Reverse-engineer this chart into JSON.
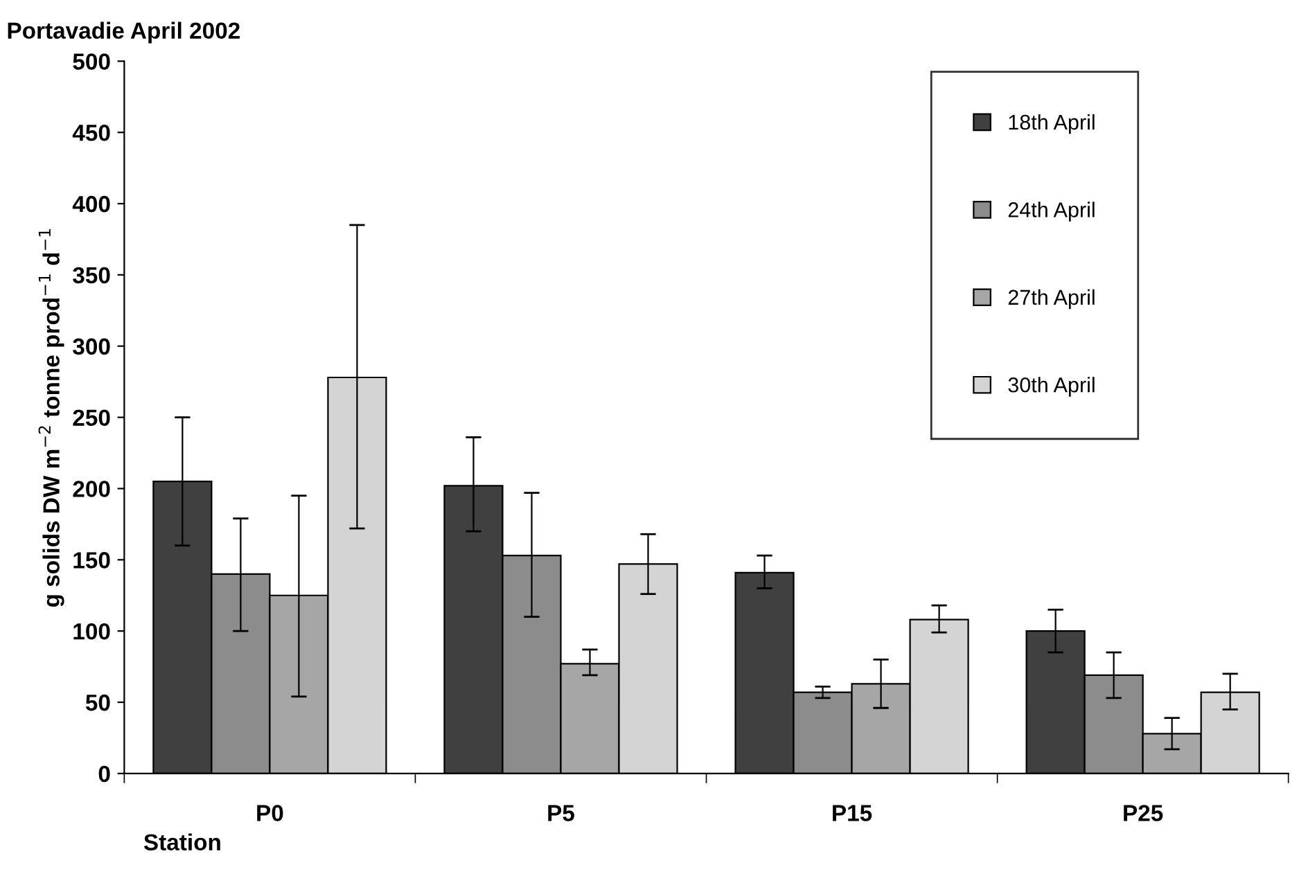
{
  "chart_data": {
    "type": "bar",
    "title": "Portavadie April 2002",
    "xlabel": "Station",
    "ylabel": "g solids DW m$^{−2}$ tonne prod$^{−1}$ d$^{−1}$",
    "categories": [
      "P0",
      "P5",
      "P15",
      "P25"
    ],
    "series": [
      {
        "name": "18th April",
        "color": "#404040",
        "values": [
          205,
          202,
          141,
          100
        ],
        "errors": [
          [
            160,
            250
          ],
          [
            170,
            236
          ],
          [
            130,
            153
          ],
          [
            85,
            115
          ]
        ]
      },
      {
        "name": "24th April",
        "color": "#8c8c8c",
        "values": [
          140,
          153,
          57,
          69
        ],
        "errors": [
          [
            100,
            179
          ],
          [
            110,
            197
          ],
          [
            53,
            61
          ],
          [
            53,
            85
          ]
        ]
      },
      {
        "name": "27th April",
        "color": "#a6a6a6",
        "values": [
          125,
          77,
          63,
          28
        ],
        "errors": [
          [
            54,
            195
          ],
          [
            69,
            87
          ],
          [
            46,
            80
          ],
          [
            17,
            39
          ]
        ]
      },
      {
        "name": "30th April",
        "color": "#d4d4d4",
        "values": [
          278,
          147,
          108,
          57
        ],
        "errors": [
          [
            172,
            385
          ],
          [
            126,
            168
          ],
          [
            99,
            118
          ],
          [
            45,
            70
          ]
        ]
      }
    ],
    "ylim": [
      0,
      500
    ],
    "yticks": [
      0,
      50,
      100,
      150,
      200,
      250,
      300,
      350,
      400,
      450,
      500
    ],
    "grid": false,
    "legend": "top right"
  }
}
